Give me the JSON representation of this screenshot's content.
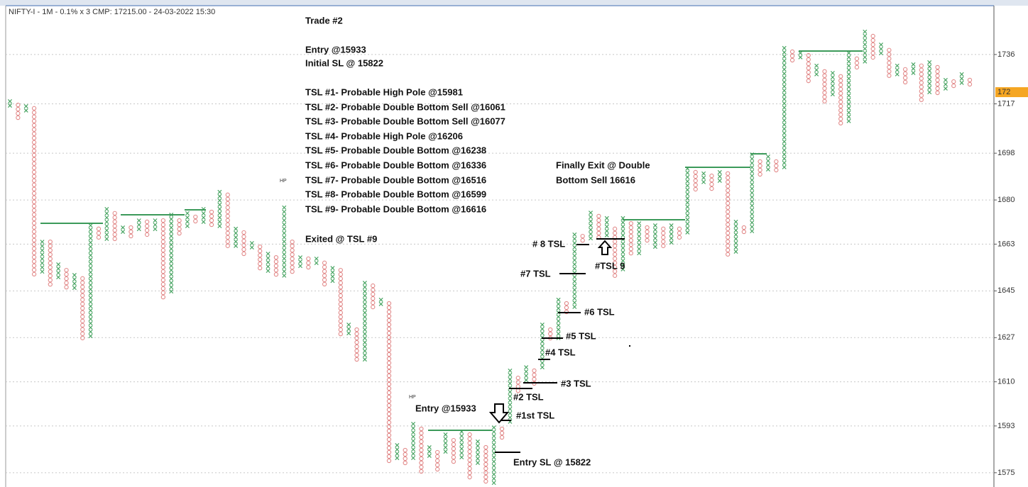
{
  "chart_data": {
    "type": "pnf",
    "title": "NIFTY-I - 1M - 0.1% x 3 CMP: 17215.00 - 24-03-2022 15:30",
    "notes": [
      "Trade #2",
      "Entry @15933",
      "Initial SL @ 15822",
      "TSL #1- Probable High Pole @15981",
      "TSL #2- Probable Double Bottom Sell @16061",
      "TSL #3- Probable Double Bottom Sell @16077",
      "TSL #4- Probable High Pole  @16206",
      "TSL #5- Probable Double Bottom @16238",
      "TSL #6- Probable Double Bottom @16336",
      "TSL #7- Probable Double Bottom @16516",
      "TSL #8- Probable Double Bottom @16599",
      "TSL #9- Probable Double Bottom @16616",
      "Exited @ TSL #9"
    ],
    "annotations": [
      "Finally Exit @ Double",
      "Bottom Sell 16616",
      "# 8 TSL",
      "#TSL 9",
      "#7 TSL",
      "#6 TSL",
      "#5 TSL",
      "#4 TSL",
      "#3  TSL",
      "#2 TSL",
      "#1st TSL",
      "Entry @15933",
      "Entry SL @ 15822",
      "HP",
      "HP"
    ],
    "colors": {
      "X": "#4aa564",
      "O": "#e28a8a"
    },
    "ylim": [
      15695,
      17548
    ],
    "yticks": [
      {
        "value": 15750,
        "label": "1575"
      },
      {
        "value": 15930,
        "label": "1593"
      },
      {
        "value": 16100,
        "label": "1610"
      },
      {
        "value": 16270,
        "label": "1627"
      },
      {
        "value": 16450,
        "label": "1645"
      },
      {
        "value": 16630,
        "label": "1663"
      },
      {
        "value": 16800,
        "label": "1680"
      },
      {
        "value": 16980,
        "label": "1698"
      },
      {
        "value": 17170,
        "label": "1717"
      },
      {
        "value": 17360,
        "label": "1736"
      }
    ],
    "cmp": {
      "value": 17215,
      "label": "172"
    },
    "grid": true,
    "columns": [
      {
        "kind": "X",
        "high": 17188,
        "low": 17142
      },
      {
        "kind": "O",
        "high": 17174,
        "low": 17106
      },
      {
        "kind": "X",
        "high": 17169,
        "low": 17133
      },
      {
        "kind": "O",
        "high": 17161,
        "low": 16492
      },
      {
        "kind": "X",
        "high": 16647,
        "low": 16506
      },
      {
        "kind": "O",
        "high": 16647,
        "low": 16465
      },
      {
        "kind": "X",
        "high": 16560,
        "low": 16492
      },
      {
        "kind": "O",
        "high": 16538,
        "low": 16451
      },
      {
        "kind": "X",
        "high": 16519,
        "low": 16451
      },
      {
        "kind": "O",
        "high": 16506,
        "low": 16246
      },
      {
        "kind": "X",
        "high": 16710,
        "low": 16260
      },
      {
        "kind": "O",
        "high": 16697,
        "low": 16642
      },
      {
        "kind": "X",
        "high": 16773,
        "low": 16642
      },
      {
        "kind": "O",
        "high": 16757,
        "low": 16642
      },
      {
        "kind": "X",
        "high": 16702,
        "low": 16656
      },
      {
        "kind": "O",
        "high": 16702,
        "low": 16642
      },
      {
        "kind": "X",
        "high": 16729,
        "low": 16669
      },
      {
        "kind": "O",
        "high": 16724,
        "low": 16647
      },
      {
        "kind": "X",
        "high": 16729,
        "low": 16664
      },
      {
        "kind": "O",
        "high": 16729,
        "low": 16410
      },
      {
        "kind": "X",
        "high": 16751,
        "low": 16424
      },
      {
        "kind": "O",
        "high": 16729,
        "low": 16656
      },
      {
        "kind": "X",
        "high": 16757,
        "low": 16683
      },
      {
        "kind": "O",
        "high": 16743,
        "low": 16702
      },
      {
        "kind": "X",
        "high": 16773,
        "low": 16702
      },
      {
        "kind": "O",
        "high": 16762,
        "low": 16683
      },
      {
        "kind": "X",
        "high": 16839,
        "low": 16683
      },
      {
        "kind": "O",
        "high": 16828,
        "low": 16609
      },
      {
        "kind": "X",
        "high": 16697,
        "low": 16615
      },
      {
        "kind": "O",
        "high": 16683,
        "low": 16582
      },
      {
        "kind": "X",
        "high": 16642,
        "low": 16601
      },
      {
        "kind": "O",
        "high": 16628,
        "low": 16519
      },
      {
        "kind": "X",
        "high": 16601,
        "low": 16506
      },
      {
        "kind": "O",
        "high": 16587,
        "low": 16492
      },
      {
        "kind": "X",
        "high": 16779,
        "low": 16492
      },
      {
        "kind": "O",
        "high": 16647,
        "low": 16506
      },
      {
        "kind": "X",
        "high": 16587,
        "low": 16533
      },
      {
        "kind": "O",
        "high": 16582,
        "low": 16519
      },
      {
        "kind": "X",
        "high": 16582,
        "low": 16533
      },
      {
        "kind": "O",
        "high": 16566,
        "low": 16465
      },
      {
        "kind": "X",
        "high": 16546,
        "low": 16478
      },
      {
        "kind": "O",
        "high": 16538,
        "low": 16265
      },
      {
        "kind": "X",
        "high": 16328,
        "low": 16273
      },
      {
        "kind": "O",
        "high": 16309,
        "low": 16164
      },
      {
        "kind": "X",
        "high": 16489,
        "low": 16172
      },
      {
        "kind": "O",
        "high": 16478,
        "low": 16369
      },
      {
        "kind": "X",
        "high": 16424,
        "low": 16383
      },
      {
        "kind": "O",
        "high": 16410,
        "low": 15782
      },
      {
        "kind": "X",
        "high": 15864,
        "low": 15796
      },
      {
        "kind": "O",
        "high": 15845,
        "low": 15769
      },
      {
        "kind": "X",
        "high": 15946,
        "low": 15796
      },
      {
        "kind": "O",
        "high": 15927,
        "low": 15736
      },
      {
        "kind": "X",
        "high": 15856,
        "low": 15796
      },
      {
        "kind": "O",
        "high": 15837,
        "low": 15747
      },
      {
        "kind": "X",
        "high": 15905,
        "low": 15823
      },
      {
        "kind": "O",
        "high": 15883,
        "low": 15769
      },
      {
        "kind": "X",
        "high": 15916,
        "low": 15796
      },
      {
        "kind": "O",
        "high": 15905,
        "low": 15719
      },
      {
        "kind": "X",
        "high": 15878,
        "low": 15769
      },
      {
        "kind": "O",
        "high": 15856,
        "low": 15695
      },
      {
        "kind": "X",
        "high": 15932,
        "low": 15695
      },
      {
        "kind": "O",
        "high": 15927,
        "low": 15864
      },
      {
        "kind": "X",
        "high": 16151,
        "low": 15932
      },
      {
        "kind": "O",
        "high": 16123,
        "low": 16055
      },
      {
        "kind": "X",
        "high": 16164,
        "low": 16096
      },
      {
        "kind": "O",
        "high": 16151,
        "low": 16082
      },
      {
        "kind": "X",
        "high": 16328,
        "low": 16137
      },
      {
        "kind": "O",
        "high": 16309,
        "low": 16246
      },
      {
        "kind": "X",
        "high": 16424,
        "low": 16260
      },
      {
        "kind": "O",
        "high": 16410,
        "low": 16355
      },
      {
        "kind": "X",
        "high": 16675,
        "low": 16369
      },
      {
        "kind": "O",
        "high": 16669,
        "low": 16628
      },
      {
        "kind": "X",
        "high": 16759,
        "low": 16642
      },
      {
        "kind": "O",
        "high": 16746,
        "low": 16642
      },
      {
        "kind": "X",
        "high": 16738,
        "low": 16642
      },
      {
        "kind": "O",
        "high": 16697,
        "low": 16492
      },
      {
        "kind": "X",
        "high": 16738,
        "low": 16519
      },
      {
        "kind": "O",
        "high": 16718,
        "low": 16587
      },
      {
        "kind": "X",
        "high": 16718,
        "low": 16574
      },
      {
        "kind": "O",
        "high": 16702,
        "low": 16628
      },
      {
        "kind": "X",
        "high": 16710,
        "low": 16601
      },
      {
        "kind": "O",
        "high": 16697,
        "low": 16601
      },
      {
        "kind": "X",
        "high": 16710,
        "low": 16628
      },
      {
        "kind": "O",
        "high": 16697,
        "low": 16642
      },
      {
        "kind": "X",
        "high": 16929,
        "low": 16656
      },
      {
        "kind": "O",
        "high": 16915,
        "low": 16828
      },
      {
        "kind": "X",
        "high": 16910,
        "low": 16847
      },
      {
        "kind": "O",
        "high": 16901,
        "low": 16833
      },
      {
        "kind": "X",
        "high": 16915,
        "low": 16860
      },
      {
        "kind": "O",
        "high": 16910,
        "low": 16574
      },
      {
        "kind": "X",
        "high": 16724,
        "low": 16587
      },
      {
        "kind": "O",
        "high": 16702,
        "low": 16656
      },
      {
        "kind": "X",
        "high": 16983,
        "low": 16664
      },
      {
        "kind": "O",
        "high": 16956,
        "low": 16888
      },
      {
        "kind": "X",
        "high": 16975,
        "low": 16901
      },
      {
        "kind": "O",
        "high": 16956,
        "low": 16901
      },
      {
        "kind": "X",
        "high": 17393,
        "low": 16915
      },
      {
        "kind": "O",
        "high": 17379,
        "low": 17325
      },
      {
        "kind": "X",
        "high": 17374,
        "low": 17338
      },
      {
        "kind": "O",
        "high": 17365,
        "low": 17248
      },
      {
        "kind": "X",
        "high": 17325,
        "low": 17270
      },
      {
        "kind": "O",
        "high": 17303,
        "low": 17161
      },
      {
        "kind": "X",
        "high": 17297,
        "low": 17188
      },
      {
        "kind": "O",
        "high": 17284,
        "low": 17079
      },
      {
        "kind": "X",
        "high": 17374,
        "low": 17084
      },
      {
        "kind": "O",
        "high": 17352,
        "low": 17297
      },
      {
        "kind": "X",
        "high": 17456,
        "low": 17311
      },
      {
        "kind": "O",
        "high": 17439,
        "low": 17330
      },
      {
        "kind": "X",
        "high": 17406,
        "low": 17346
      },
      {
        "kind": "O",
        "high": 17385,
        "low": 17270
      },
      {
        "kind": "X",
        "high": 17325,
        "low": 17270
      },
      {
        "kind": "O",
        "high": 17311,
        "low": 17243
      },
      {
        "kind": "X",
        "high": 17330,
        "low": 17275
      },
      {
        "kind": "O",
        "high": 17325,
        "low": 17174
      },
      {
        "kind": "X",
        "high": 17338,
        "low": 17202
      },
      {
        "kind": "O",
        "high": 17319,
        "low": 17193
      },
      {
        "kind": "X",
        "high": 17270,
        "low": 17215
      },
      {
        "kind": "O",
        "high": 17264,
        "low": 17215
      },
      {
        "kind": "X",
        "high": 17292,
        "low": 17229
      },
      {
        "kind": "O",
        "high": 17270,
        "low": 17229
      }
    ]
  }
}
